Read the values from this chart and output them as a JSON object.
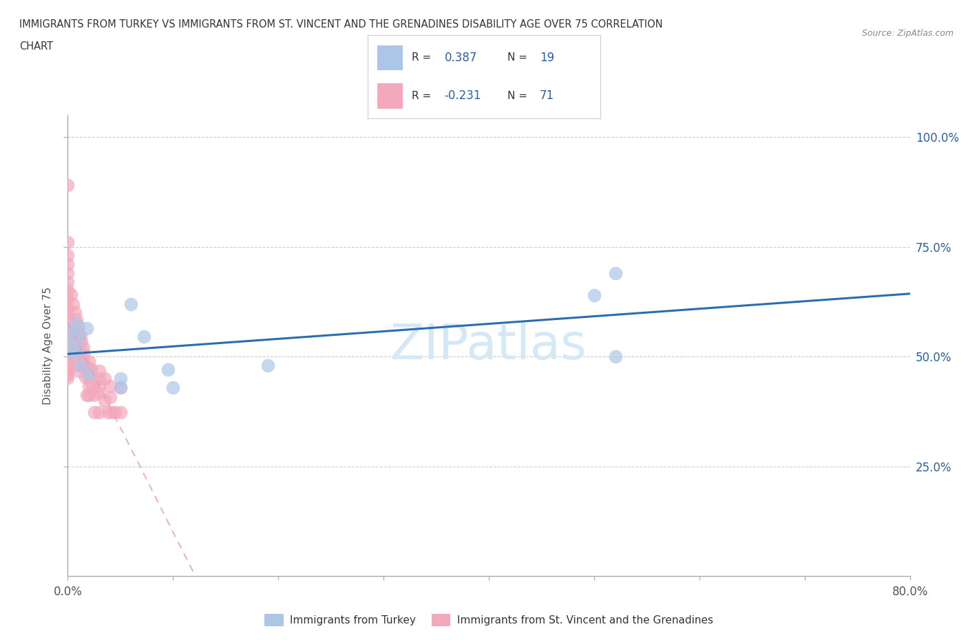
{
  "title_line1": "IMMIGRANTS FROM TURKEY VS IMMIGRANTS FROM ST. VINCENT AND THE GRENADINES DISABILITY AGE OVER 75 CORRELATION",
  "title_line2": "CHART",
  "source": "Source: ZipAtlas.com",
  "ylabel": "Disability Age Over 75",
  "xmin": 0.0,
  "xmax": 0.8,
  "ymin": 0.0,
  "ymax": 1.05,
  "xtick_positions": [
    0.0,
    0.1,
    0.2,
    0.3,
    0.4,
    0.5,
    0.6,
    0.7,
    0.8
  ],
  "xtick_labels_show": [
    "0.0%",
    "",
    "",
    "",
    "",
    "",
    "",
    "",
    "80.0%"
  ],
  "ytick_positions": [
    0.25,
    0.5,
    0.75,
    1.0
  ],
  "ytick_labels": [
    "25.0%",
    "50.0%",
    "75.0%",
    "100.0%"
  ],
  "turkey_color": "#adc6e8",
  "svg_color": "#f4a8bc",
  "turkey_line_color": "#2b6cb0",
  "svg_line_color": "#e8a0b0",
  "watermark_color": "#d4e8f5",
  "turkey_R": 0.387,
  "turkey_N": 19,
  "svg_R": -0.231,
  "svg_N": 71,
  "legend_text_color": "#2b5fa8",
  "legend_label_color": "#333333",
  "turkey_x": [
    0.003,
    0.003,
    0.003,
    0.008,
    0.01,
    0.01,
    0.012,
    0.018,
    0.02,
    0.05,
    0.05,
    0.06,
    0.072,
    0.095,
    0.1,
    0.5,
    0.52,
    0.52,
    0.19
  ],
  "turkey_y": [
    0.535,
    0.56,
    0.51,
    0.575,
    0.545,
    0.515,
    0.48,
    0.565,
    0.46,
    0.45,
    0.43,
    0.62,
    0.545,
    0.47,
    0.43,
    0.64,
    0.69,
    0.5,
    0.48
  ],
  "svgr_x": [
    0.0,
    0.0,
    0.0,
    0.0,
    0.0,
    0.0,
    0.0,
    0.0,
    0.0,
    0.0,
    0.0,
    0.0,
    0.0,
    0.0,
    0.0,
    0.0,
    0.0,
    0.0,
    0.0,
    0.0,
    0.0,
    0.0,
    0.0,
    0.0,
    0.0,
    0.0,
    0.003,
    0.005,
    0.007,
    0.008,
    0.01,
    0.01,
    0.01,
    0.01,
    0.01,
    0.01,
    0.01,
    0.01,
    0.01,
    0.012,
    0.013,
    0.015,
    0.015,
    0.015,
    0.015,
    0.017,
    0.018,
    0.02,
    0.02,
    0.02,
    0.02,
    0.02,
    0.022,
    0.022,
    0.023,
    0.025,
    0.025,
    0.03,
    0.03,
    0.03,
    0.03,
    0.03,
    0.035,
    0.035,
    0.038,
    0.04,
    0.04,
    0.042,
    0.045,
    0.05,
    0.05
  ],
  "svgr_y": [
    0.89,
    0.76,
    0.73,
    0.71,
    0.69,
    0.67,
    0.65,
    0.63,
    0.61,
    0.595,
    0.58,
    0.565,
    0.555,
    0.545,
    0.535,
    0.525,
    0.515,
    0.508,
    0.5,
    0.493,
    0.487,
    0.48,
    0.472,
    0.465,
    0.458,
    0.452,
    0.642,
    0.62,
    0.6,
    0.585,
    0.57,
    0.555,
    0.542,
    0.53,
    0.517,
    0.505,
    0.493,
    0.48,
    0.467,
    0.547,
    0.533,
    0.52,
    0.507,
    0.493,
    0.48,
    0.453,
    0.413,
    0.49,
    0.472,
    0.453,
    0.433,
    0.413,
    0.472,
    0.453,
    0.433,
    0.413,
    0.373,
    0.467,
    0.45,
    0.433,
    0.417,
    0.373,
    0.45,
    0.4,
    0.373,
    0.433,
    0.407,
    0.373,
    0.373,
    0.43,
    0.373
  ]
}
